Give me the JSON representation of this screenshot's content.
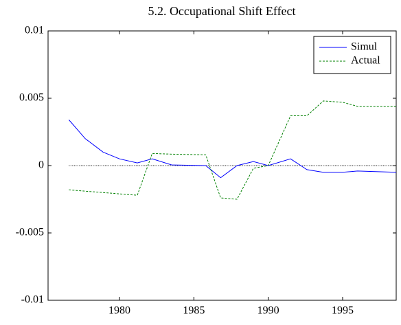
{
  "chart_data": {
    "type": "line",
    "title": "5.2. Occupational Shift Effect",
    "x": [
      1976.6,
      1977.7,
      1978.9,
      1980.0,
      1981.2,
      1982.2,
      1983.5,
      1985.8,
      1986.8,
      1987.9,
      1989.0,
      1990.0,
      1991.5,
      1992.6,
      1993.7,
      1995.0,
      1996.0,
      1998.6
    ],
    "series": [
      {
        "name": "Simul",
        "color": "#0000ff",
        "dash": "solid",
        "values": [
          0.0034,
          0.002,
          0.001,
          0.0005,
          0.0002,
          0.0005,
          5e-05,
          0.0,
          -0.0009,
          0.0,
          0.0003,
          0.0,
          0.0005,
          -0.0003,
          -0.0005,
          -0.0005,
          -0.0004,
          -0.0005
        ]
      },
      {
        "name": "Actual",
        "color": "#008000",
        "dash": "dashed",
        "values": [
          -0.0018,
          -0.0019,
          -0.002,
          -0.0021,
          -0.0022,
          0.0009,
          0.00085,
          0.0008,
          -0.0024,
          -0.0025,
          -0.0002,
          0.0,
          0.0037,
          0.0037,
          0.0048,
          0.0047,
          0.0044,
          0.0044
        ]
      }
    ],
    "xlim": [
      1975.2,
      1998.6
    ],
    "xticks": [
      1980,
      1985,
      1990,
      1995
    ],
    "ylim": [
      -0.01,
      0.01
    ],
    "yticks": [
      -0.01,
      -0.005,
      0,
      0.005,
      0.01
    ],
    "reference_line": 0,
    "legend": "upper-right"
  }
}
